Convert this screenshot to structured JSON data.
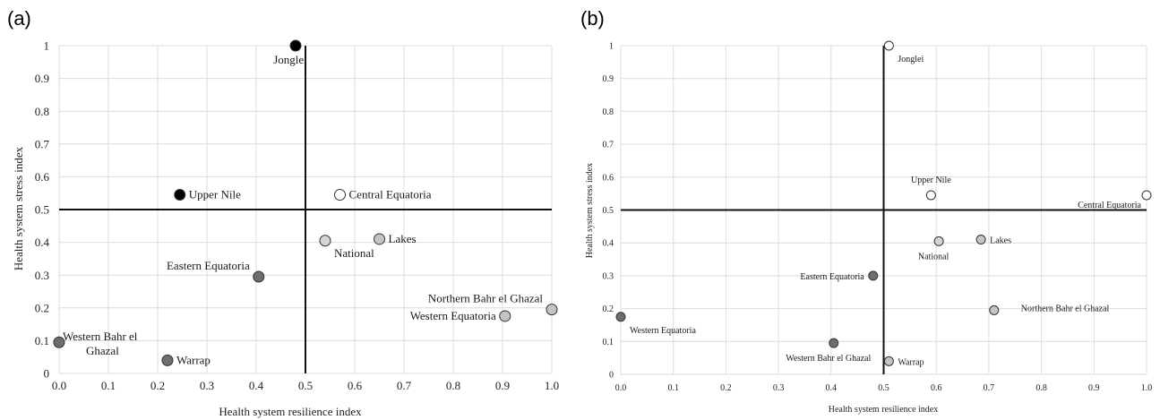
{
  "chart_data": [
    {
      "type": "scatter",
      "panel_label": "(a)",
      "xlabel": "Health system resilience index",
      "ylabel": "Health system stress index",
      "xlim": [
        0,
        1
      ],
      "ylim": [
        0,
        1
      ],
      "xticks": [
        "0.0",
        "0.1",
        "0.2",
        "0.3",
        "0.4",
        "0.5",
        "0.6",
        "0.7",
        "0.8",
        "0.9",
        "1.0"
      ],
      "yticks": [
        "0",
        "0.1",
        "0.2",
        "0.3",
        "0.4",
        "0.5",
        "0.6",
        "0.7",
        "0.8",
        "0.9",
        "1"
      ],
      "grid": true,
      "reference_lines": {
        "x": 0.5,
        "y": 0.5
      },
      "points": [
        {
          "label": "Jonglei",
          "x": 0.48,
          "y": 1.0,
          "color": "#000000",
          "label_pos": "below-left"
        },
        {
          "label": "Upper Nile",
          "x": 0.245,
          "y": 0.545,
          "color": "#000000",
          "label_pos": "right"
        },
        {
          "label": "Central Equatoria",
          "x": 0.57,
          "y": 0.545,
          "color": "#ffffff",
          "label_pos": "right"
        },
        {
          "label": "National",
          "x": 0.54,
          "y": 0.405,
          "color": "#d4d4d4",
          "label_pos": "below-right"
        },
        {
          "label": "Lakes",
          "x": 0.65,
          "y": 0.41,
          "color": "#c4c4c4",
          "label_pos": "right"
        },
        {
          "label": "Eastern Equatoria",
          "x": 0.405,
          "y": 0.295,
          "color": "#6e6e6e",
          "label_pos": "above-left"
        },
        {
          "label": "Northern Bahr el Ghazal",
          "x": 1.0,
          "y": 0.195,
          "color": "#c4c4c4",
          "label_pos": "above-left"
        },
        {
          "label": "Western Equatoria",
          "x": 0.905,
          "y": 0.175,
          "color": "#c4c4c4",
          "label_pos": "left"
        },
        {
          "label": "Western Bahr el Ghazal",
          "label_lines": [
            "Western Bahr el",
            "Ghazal"
          ],
          "x": 0.0,
          "y": 0.095,
          "color": "#6e6e6e",
          "label_pos": "right-two-line"
        },
        {
          "label": "Warrap",
          "x": 0.22,
          "y": 0.04,
          "color": "#6e6e6e",
          "label_pos": "right"
        }
      ]
    },
    {
      "type": "scatter",
      "panel_label": "(b)",
      "xlabel": "Health system resilience index",
      "ylabel": "Health system stress index",
      "xlim": [
        0,
        1
      ],
      "ylim": [
        0,
        1
      ],
      "xticks": [
        "0.0",
        "0.1",
        "0.2",
        "0.3",
        "0.4",
        "0.5",
        "0.6",
        "0.7",
        "0.8",
        "0.9",
        "1.0"
      ],
      "yticks": [
        "0",
        "0.1",
        "0.2",
        "0.3",
        "0.4",
        "0.5",
        "0.6",
        "0.7",
        "0.8",
        "0.9",
        "1"
      ],
      "grid": true,
      "reference_lines": {
        "x": 0.5,
        "y": 0.5
      },
      "points": [
        {
          "label": "Jonglei",
          "x": 0.51,
          "y": 1.0,
          "color": "#ffffff",
          "label_pos": "below-right"
        },
        {
          "label": "Upper Nile",
          "x": 0.59,
          "y": 0.545,
          "color": "#ffffff",
          "label_pos": "above"
        },
        {
          "label": "Central Equatoria",
          "x": 1.0,
          "y": 0.545,
          "color": "#ffffff",
          "label_pos": "left-below"
        },
        {
          "label": "National",
          "x": 0.605,
          "y": 0.405,
          "color": "#d4d4d4",
          "label_pos": "below-left"
        },
        {
          "label": "Lakes",
          "x": 0.685,
          "y": 0.41,
          "color": "#c4c4c4",
          "label_pos": "right"
        },
        {
          "label": "Eastern Equatoria",
          "x": 0.48,
          "y": 0.3,
          "color": "#6e6e6e",
          "label_pos": "left"
        },
        {
          "label": "Northern Bahr el Ghazal",
          "x": 0.71,
          "y": 0.195,
          "color": "#c4c4c4",
          "label_pos": "far-right"
        },
        {
          "label": "Western Equatoria",
          "x": 0.0,
          "y": 0.175,
          "color": "#6e6e6e",
          "label_pos": "below-right"
        },
        {
          "label": "Western Bahr el Ghazal",
          "x": 0.405,
          "y": 0.095,
          "color": "#6e6e6e",
          "label_pos": "below-left"
        },
        {
          "label": "Warrap",
          "x": 0.51,
          "y": 0.04,
          "color": "#c4c4c4",
          "label_pos": "right"
        }
      ]
    }
  ]
}
